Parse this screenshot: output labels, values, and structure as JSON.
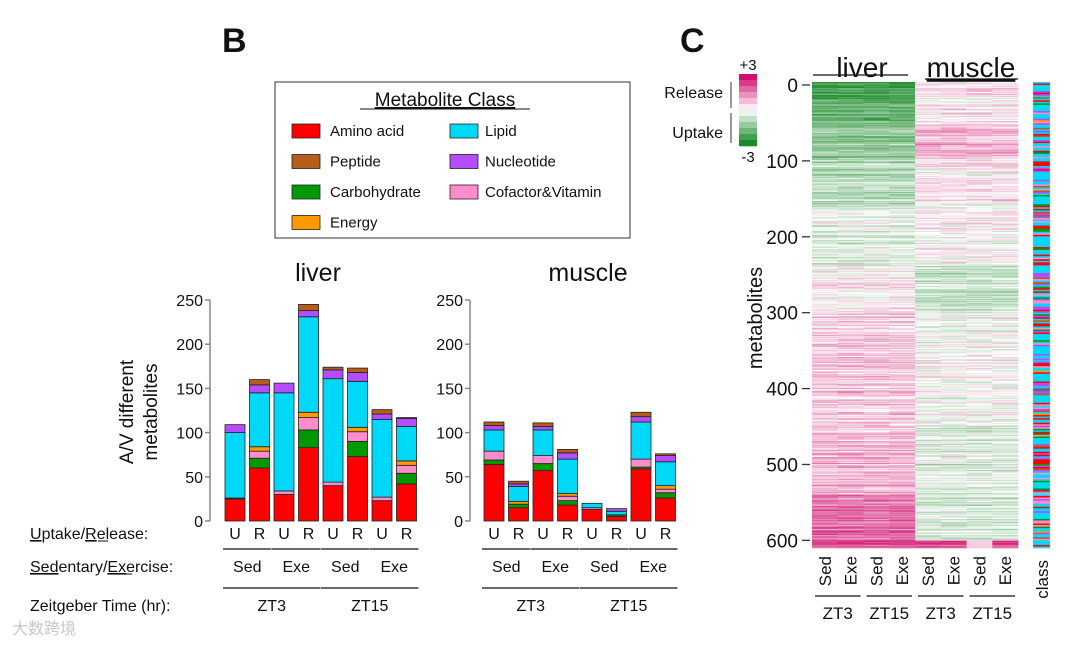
{
  "panels": {
    "b_label": "B",
    "c_label": "C"
  },
  "colors": {
    "Amino acid": "#ff0000",
    "Peptide": "#b85c1a",
    "Carbohydrate": "#009a00",
    "Energy": "#ff9900",
    "Lipid": "#00d8f8",
    "Nucleotide": "#b44cff",
    "Cofactor&Vitamin": "#ff8ccc",
    "heat_low": "#1a8a2a",
    "heat_mid": "#ffffff",
    "heat_high": "#d0106e"
  },
  "legend": {
    "title": "Metabolite Class",
    "col1": [
      "Amino acid",
      "Peptide",
      "Carbohydrate",
      "Energy"
    ],
    "col2": [
      "Lipid",
      "Nucleotide",
      "Cofactor&Vitamin"
    ]
  },
  "row_labels": {
    "uptake_release": [
      "U",
      "ptake/",
      "R",
      "elease:"
    ],
    "sed_exe": [
      "Sed",
      "entary/",
      "Ex",
      "ercise:"
    ],
    "zeitgeber": "Zeitgeber Time (hr):"
  },
  "watermark": "大数跨境",
  "chart_data": [
    {
      "type": "bar",
      "stacked": true,
      "title": "liver",
      "ylabel": "A/V different metabolites",
      "ylim": [
        0,
        250
      ],
      "yticks": [
        "0",
        "50",
        "100",
        "150",
        "200",
        "250"
      ],
      "categories": [
        "U",
        "R",
        "U",
        "R",
        "U",
        "R",
        "U",
        "R"
      ],
      "groups": [
        "Sed",
        "Exe",
        "Sed",
        "Exe"
      ],
      "time_groups": [
        "ZT3",
        "ZT15"
      ],
      "series": [
        {
          "name": "Amino acid",
          "values": [
            25,
            60,
            30,
            83,
            40,
            73,
            23,
            42
          ]
        },
        {
          "name": "Carbohydrate",
          "values": [
            0,
            11,
            0,
            20,
            0,
            17,
            0,
            12
          ]
        },
        {
          "name": "Cofactor&Vitamin",
          "values": [
            1,
            8,
            4,
            14,
            4,
            11,
            4,
            9
          ]
        },
        {
          "name": "Energy",
          "values": [
            0,
            5,
            0,
            6,
            0,
            5,
            0,
            5
          ]
        },
        {
          "name": "Lipid",
          "values": [
            74,
            61,
            111,
            108,
            117,
            52,
            88,
            39
          ]
        },
        {
          "name": "Nucleotide",
          "values": [
            9,
            9,
            11,
            7,
            10,
            10,
            6,
            9
          ]
        },
        {
          "name": "Peptide",
          "values": [
            0,
            6,
            0,
            7,
            3,
            5,
            5,
            1
          ]
        }
      ]
    },
    {
      "type": "bar",
      "stacked": true,
      "title": "muscle",
      "ylim": [
        0,
        250
      ],
      "yticks": [
        "0",
        "50",
        "100",
        "150",
        "200",
        "250"
      ],
      "categories": [
        "U",
        "R",
        "U",
        "R",
        "U",
        "R",
        "U",
        "R"
      ],
      "groups": [
        "Sed",
        "Exe",
        "Sed",
        "Exe"
      ],
      "time_groups": [
        "ZT3",
        "ZT15"
      ],
      "series": [
        {
          "name": "Amino acid",
          "values": [
            64,
            15,
            57,
            18,
            13,
            5,
            59,
            26
          ]
        },
        {
          "name": "Carbohydrate",
          "values": [
            5,
            4,
            8,
            5,
            0,
            2,
            2,
            6
          ]
        },
        {
          "name": "Cofactor&Vitamin",
          "values": [
            10,
            0,
            9,
            5,
            2,
            0,
            9,
            4
          ]
        },
        {
          "name": "Energy",
          "values": [
            0,
            3,
            0,
            3,
            0,
            0,
            0,
            4
          ]
        },
        {
          "name": "Lipid",
          "values": [
            24,
            17,
            29,
            39,
            5,
            4,
            42,
            27
          ]
        },
        {
          "name": "Nucleotide",
          "values": [
            5,
            3,
            4,
            7,
            0,
            3,
            6,
            7
          ]
        },
        {
          "name": "Peptide",
          "values": [
            4,
            3,
            4,
            4,
            0,
            0,
            5,
            2
          ]
        }
      ]
    },
    {
      "type": "heatmap",
      "ylabel": "metabolites",
      "ylim": [
        0,
        610
      ],
      "yticks": [
        "0",
        "100",
        "200",
        "300",
        "400",
        "500",
        "600"
      ],
      "tissues": [
        "liver",
        "muscle"
      ],
      "columns": [
        "Sed",
        "Exe",
        "Sed",
        "Exe",
        "Sed",
        "Exe",
        "Sed",
        "Exe"
      ],
      "time_groups": [
        "ZT3",
        "ZT15",
        "ZT3",
        "ZT15"
      ],
      "class_label": "class",
      "scale": {
        "min": "-3",
        "max": "+3",
        "high_label": "Release",
        "low_label": "Uptake"
      },
      "row_count": 610,
      "bands": [
        {
          "rows": [
            0,
            20
          ],
          "liver": -2.6,
          "muscle": 0.3
        },
        {
          "rows": [
            20,
            55
          ],
          "liver": -2.1,
          "muscle": 0.1
        },
        {
          "rows": [
            55,
            100
          ],
          "liver": -1.5,
          "muscle": 0.9
        },
        {
          "rows": [
            100,
            160
          ],
          "liver": -1.0,
          "muscle": 0.2
        },
        {
          "rows": [
            160,
            240
          ],
          "liver": -0.4,
          "muscle": 0.0
        },
        {
          "rows": [
            240,
            300
          ],
          "liver": 0.2,
          "muscle": -0.7
        },
        {
          "rows": [
            300,
            450
          ],
          "liver": 0.6,
          "muscle": -0.1
        },
        {
          "rows": [
            450,
            540
          ],
          "liver": 0.9,
          "muscle": -0.4
        },
        {
          "rows": [
            540,
            600
          ],
          "liver": 1.8,
          "muscle": -0.5
        },
        {
          "rows": [
            600,
            610
          ],
          "liver": 2.0,
          "muscle": 2.0
        }
      ]
    }
  ]
}
